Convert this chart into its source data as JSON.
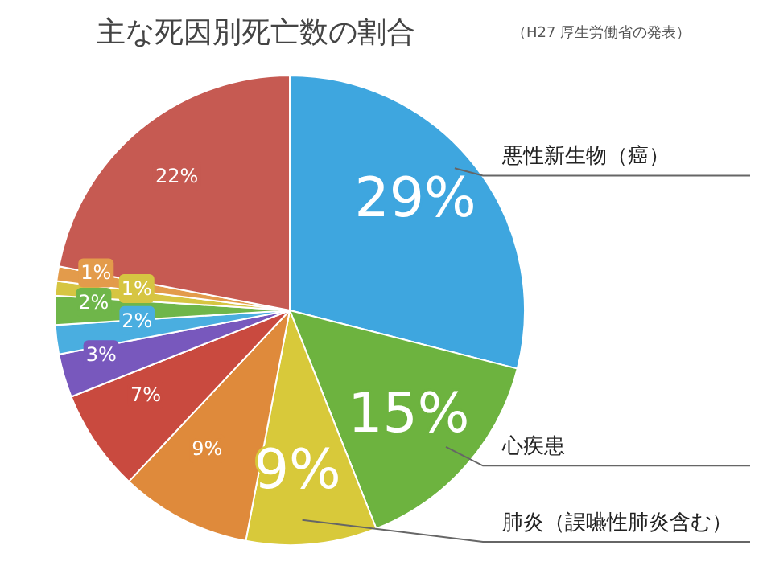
{
  "chart_data": {
    "type": "pie",
    "title": "主な死因別死亡数の割合",
    "subtitle": "（H27 厚生労働省の発表）",
    "categories": [
      "悪性新生物（癌）",
      "心疾患",
      "肺炎（誤嚥性肺炎含む）",
      null,
      null,
      null,
      null,
      null,
      null,
      null,
      null
    ],
    "values": [
      29,
      15,
      9,
      9,
      7,
      3,
      2,
      2,
      1,
      1,
      22
    ],
    "value_labels": [
      "29%",
      "15%",
      "9%",
      "9%",
      "7%",
      "3%",
      "2%",
      "2%",
      "1%",
      "1%",
      "22%"
    ],
    "colors": [
      "#3ea6df",
      "#6db33f",
      "#d8c93a",
      "#df8a3b",
      "#c94a3f",
      "#7858bd",
      "#4aaee0",
      "#6fb64a",
      "#d6c542",
      "#e39b4b",
      "#c65a52"
    ],
    "legend": false
  }
}
